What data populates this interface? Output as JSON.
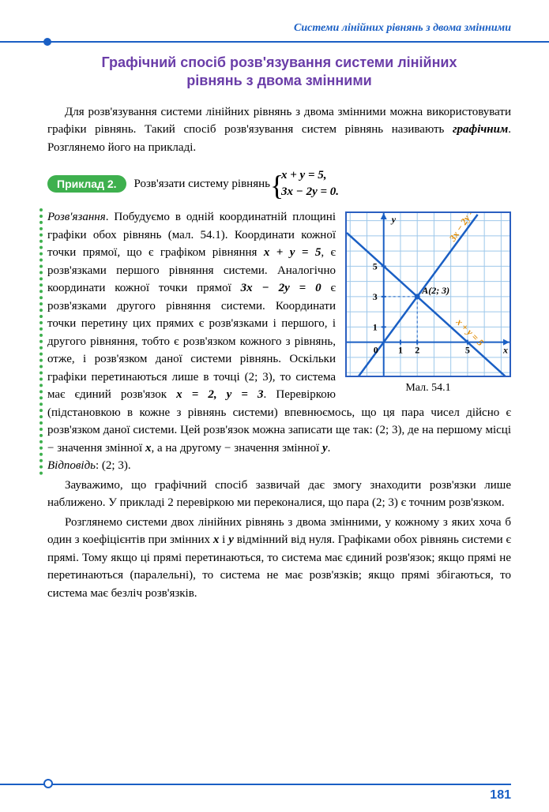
{
  "header": "Системи лінійних рівнянь з двома змінними",
  "title_l1": "Графічний спосіб розв'язування системи лінійних",
  "title_l2": "рівнянь з двома змінними",
  "intro": "Для розв'язування системи лінійних рівнянь з двома змінними можна використовувати графіки рівнянь. Такий спосіб розв'язування систем рівнянь називають ",
  "intro_em": "графічним",
  "intro_tail": ". Розглянемо його на прикладі.",
  "pill": "Приклад 2.",
  "example_text": "Розв'язати систему рівнянь ",
  "eq1": "x + y = 5,",
  "eq2": "3x − 2y = 0.",
  "solution_label": "Розв'язання",
  "sol_p1a": ". Побудуємо в одній координатній площині графіки обох рівнянь (мал. 54.1). Координати кожної точки прямої, що є графіком рівняння ",
  "sol_eq1": "x + y = 5",
  "sol_p1b": ", є розв'язками першого рівняння системи. Аналогічно координати кожної точки прямої ",
  "sol_eq2": "3x − 2y = 0",
  "sol_p1c": " є розв'язками другого рівняння системи. Координати точки перетину цих прямих є розв'язками і першого, і другого рівняння, тобто є розв'язком кожного з рівнянь, отже, і розв'язком даної системи рівнянь. Оскільки графіки перетинаються лише в точці (2; 3), то система має єдиний розв'язок ",
  "sol_eq3": "x = 2, y = 3",
  "sol_p1d": ". Перевіркою (підстановкою в кожне з рівнянь системи) впевнюємось, що ця пара чисел дійсно є розв'язком даної системи. Цей розв'язок можна записати ще так: (2; 3), де на першому місці − значення змінної ",
  "sol_varx": "x",
  "sol_p1e": ", а на другому − значення змінної ",
  "sol_vary": "y",
  "sol_p1f": ".",
  "answer_label": "Відповідь",
  "answer_val": ": (2; 3).",
  "graph_caption": "Мал. 54.1",
  "note1": "Зауважимо, що графічний спосіб зазвичай дає змогу знаходити розв'язки лише наближено. У прикладі 2 перевіркою ми переконалися, що пара (2; 3) є точним розв'язком.",
  "note2a": "Розглянемо системи двох лінійних рівнянь з двома змінними, у кожному з яких хоча б один з коефіцієнтів при змінних ",
  "note2_x": "x",
  "note2b": " і ",
  "note2_y": "y",
  "note2c": " відмінний від нуля. Графіками обох рівнянь системи є прямі. Тому якщо ці прямі перетинаються, то система має єдиний розв'язок; якщо прямі не перетинаються (паралельні), то система не має розв'язків; якщо прямі збігаються, то система має безліч розв'язків.",
  "page_num": "181",
  "graph": {
    "grid_color": "#9ec8ea",
    "axis_color": "#1a5fc4",
    "line1_color": "#1a5fc4",
    "line2_color": "#1a5fc4",
    "point_label": "A(2; 3)",
    "line1_label": "3x − 2y = 0",
    "line2_label": "x + y = 5",
    "xmin": -2.2,
    "xmax": 7.5,
    "ymin": -2.2,
    "ymax": 8.5,
    "x_ticks": [
      "0",
      "1",
      "2",
      "5"
    ],
    "y_ticks": [
      "1",
      "3",
      "5"
    ],
    "y_label": "y",
    "x_label": "x",
    "size": 206
  }
}
